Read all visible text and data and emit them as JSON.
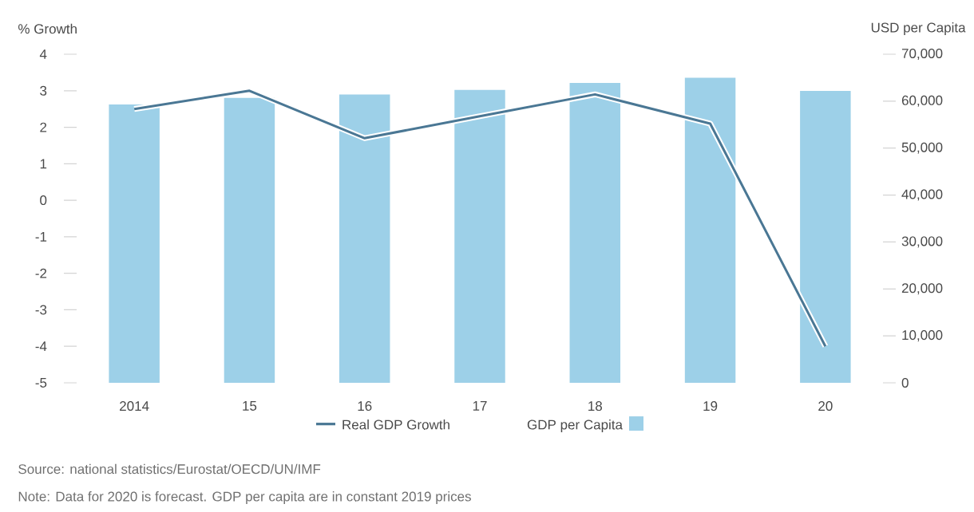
{
  "chart_data": {
    "type": "bar",
    "ylabel": "% Growth",
    "y2label": "USD per Capita",
    "categories": [
      "2014",
      "15",
      "16",
      "17",
      "18",
      "19",
      "20"
    ],
    "series": [
      {
        "name": "Real GDP Growth",
        "type": "line",
        "color": "#4a7794",
        "values": [
          2.5,
          3.0,
          1.7,
          2.3,
          2.9,
          2.1,
          -4.0
        ]
      },
      {
        "name": "GDP per Capita",
        "axis": "y2",
        "color": "#9dd0e8",
        "values": [
          59300,
          60700,
          61400,
          62400,
          63900,
          65000,
          62200
        ]
      }
    ],
    "ylim": [
      -5,
      4
    ],
    "yticks": [
      -5,
      -4,
      -3,
      -2,
      -1,
      0,
      1,
      2,
      3,
      4
    ],
    "y2lim": [
      0,
      70000
    ],
    "y2ticks": [
      0,
      {
        "value": 10000,
        "label": "10,000"
      },
      {
        "value": 20000,
        "label": "20,000"
      },
      {
        "value": 30000,
        "label": "30,000"
      },
      {
        "value": 40000,
        "label": "40,000"
      },
      {
        "value": 50000,
        "label": "50,000"
      },
      {
        "value": 60000,
        "label": "60,000"
      },
      {
        "value": 70000,
        "label": "70,000"
      }
    ],
    "legend": "bottom",
    "marker": "none",
    "line_style": "solid",
    "annotations": [
      "Source: national statistics/Eurostat/OECD/UN/IMF",
      "Note: Data for 2020 is forecast. GDP per capita are in constant 2019 prices"
    ]
  }
}
